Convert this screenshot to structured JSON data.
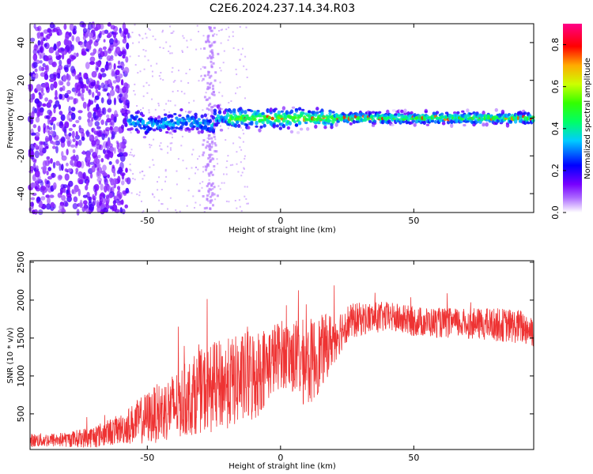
{
  "title": "C2E6.2024.237.14.34.R03",
  "chart_data": [
    {
      "type": "heatmap",
      "xlabel": "Height of straight line (km)",
      "ylabel": "Frequency (Hz)",
      "xlim": [
        -94,
        95
      ],
      "ylim": [
        -50,
        50
      ],
      "xticks": [
        -50,
        0,
        50
      ],
      "yticks": [
        -40,
        -20,
        0,
        20,
        40
      ],
      "colorbar": {
        "label": "Normalized spectral amplitude",
        "range": [
          0,
          0.9
        ],
        "ticks": [
          0.0,
          0.2,
          0.4,
          0.6,
          0.8
        ],
        "colors": [
          "#ffffff",
          "#8800ff",
          "#0000ff",
          "#00ccff",
          "#00ff66",
          "#33ff00",
          "#ccff00",
          "#ffaa00",
          "#ff0000",
          "#ff00aa"
        ]
      },
      "regions": [
        {
          "x_range": [
            -94,
            -57
          ],
          "freq_range": [
            -50,
            50
          ],
          "amplitude": "0.05-0.15 scattered noise"
        },
        {
          "x_range": [
            -57,
            20
          ],
          "freq_range": [
            -8,
            4
          ],
          "amplitude": "0.1-0.5 band"
        },
        {
          "x_range": [
            20,
            95
          ],
          "freq_range": [
            -3,
            3
          ],
          "amplitude": "0.3-0.8 narrow band"
        }
      ],
      "grid": false
    },
    {
      "type": "line",
      "xlabel": "Height of straight line (km)",
      "ylabel": "SNR (10 * v/v)",
      "xlim": [
        -94,
        95
      ],
      "ylim": [
        30,
        2520
      ],
      "xticks": [
        -50,
        0,
        50
      ],
      "yticks": [
        500,
        1000,
        1500,
        2000,
        2500
      ],
      "color": "#ee3333",
      "grid": false,
      "envelope": {
        "x": [
          -94,
          -80,
          -70,
          -60,
          -50,
          -40,
          -35,
          -30,
          -25,
          -20,
          -15,
          -10,
          -5,
          0,
          5,
          10,
          15,
          20,
          25,
          30,
          40,
          50,
          60,
          70,
          80,
          90,
          95
        ],
        "mean": [
          150,
          160,
          200,
          300,
          450,
          600,
          700,
          800,
          850,
          900,
          950,
          1000,
          1150,
          1300,
          1250,
          1150,
          1300,
          1500,
          1700,
          1750,
          1780,
          1720,
          1700,
          1690,
          1680,
          1650,
          1600
        ],
        "spread": [
          90,
          100,
          150,
          200,
          350,
          450,
          500,
          550,
          600,
          600,
          600,
          650,
          500,
          450,
          500,
          600,
          500,
          350,
          250,
          220,
          200,
          200,
          200,
          200,
          220,
          230,
          230
        ]
      }
    }
  ]
}
